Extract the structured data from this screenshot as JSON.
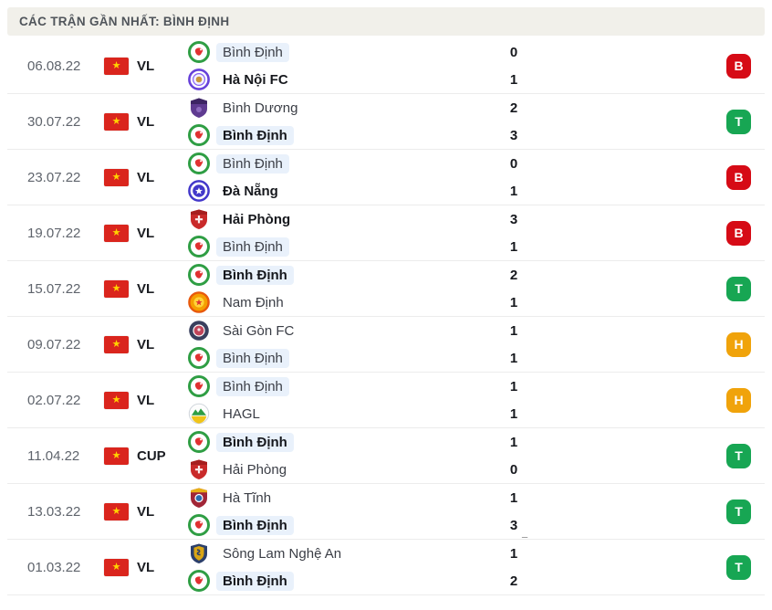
{
  "header": {
    "title": "CÁC TRẬN GẦN NHẤT: BÌNH ĐỊNH"
  },
  "icons": {
    "flag_star": "★"
  },
  "colors": {
    "highlight": "#e9f1fb",
    "flag_red": "#da251d",
    "flag_star": "#ffd400",
    "header_bg": "#f1f0ea"
  },
  "result_colors": {
    "T": "#17a653",
    "H": "#f0a30b",
    "B": "#d60b16"
  },
  "matches": [
    {
      "date": "06.08.22",
      "competition": "VL",
      "result": "B",
      "home": {
        "name": "Bình Định",
        "logo": "binh-dinh",
        "score": "0",
        "bold": false,
        "highlight": true
      },
      "away": {
        "name": "Hà Nội FC",
        "logo": "ha-noi-fc",
        "score": "1",
        "bold": true,
        "highlight": false
      }
    },
    {
      "date": "30.07.22",
      "competition": "VL",
      "result": "T",
      "home": {
        "name": "Bình Dương",
        "logo": "binh-duong",
        "score": "2",
        "bold": false,
        "highlight": false
      },
      "away": {
        "name": "Bình Định",
        "logo": "binh-dinh",
        "score": "3",
        "bold": true,
        "highlight": true
      }
    },
    {
      "date": "23.07.22",
      "competition": "VL",
      "result": "B",
      "home": {
        "name": "Bình Định",
        "logo": "binh-dinh",
        "score": "0",
        "bold": false,
        "highlight": true
      },
      "away": {
        "name": "Đà Nẵng",
        "logo": "da-nang",
        "score": "1",
        "bold": true,
        "highlight": false
      }
    },
    {
      "date": "19.07.22",
      "competition": "VL",
      "result": "B",
      "home": {
        "name": "Hải Phòng",
        "logo": "hai-phong",
        "score": "3",
        "bold": true,
        "highlight": false
      },
      "away": {
        "name": "Bình Định",
        "logo": "binh-dinh",
        "score": "1",
        "bold": false,
        "highlight": true
      }
    },
    {
      "date": "15.07.22",
      "competition": "VL",
      "result": "T",
      "home": {
        "name": "Bình Định",
        "logo": "binh-dinh",
        "score": "2",
        "bold": true,
        "highlight": true
      },
      "away": {
        "name": "Nam Định",
        "logo": "nam-dinh",
        "score": "1",
        "bold": false,
        "highlight": false
      }
    },
    {
      "date": "09.07.22",
      "competition": "VL",
      "result": "H",
      "home": {
        "name": "Sài Gòn FC",
        "logo": "sai-gon-fc",
        "score": "1",
        "bold": false,
        "highlight": false
      },
      "away": {
        "name": "Bình Định",
        "logo": "binh-dinh",
        "score": "1",
        "bold": false,
        "highlight": true
      }
    },
    {
      "date": "02.07.22",
      "competition": "VL",
      "result": "H",
      "home": {
        "name": "Bình Định",
        "logo": "binh-dinh",
        "score": "1",
        "bold": false,
        "highlight": true
      },
      "away": {
        "name": "HAGL",
        "logo": "hagl",
        "score": "1",
        "bold": false,
        "highlight": false
      }
    },
    {
      "date": "11.04.22",
      "competition": "CUP",
      "result": "T",
      "home": {
        "name": "Bình Định",
        "logo": "binh-dinh",
        "score": "1",
        "bold": true,
        "highlight": true
      },
      "away": {
        "name": "Hải Phòng",
        "logo": "hai-phong",
        "score": "0",
        "bold": false,
        "highlight": false
      }
    },
    {
      "date": "13.03.22",
      "competition": "VL",
      "result": "T",
      "home": {
        "name": "Hà Tĩnh",
        "logo": "ha-tinh",
        "score": "1",
        "bold": false,
        "highlight": false
      },
      "away": {
        "name": "Bình Định",
        "logo": "binh-dinh",
        "score": "3",
        "bold": true,
        "highlight": true,
        "score_mark": "_"
      }
    },
    {
      "date": "01.03.22",
      "competition": "VL",
      "result": "T",
      "home": {
        "name": "Sông Lam Nghệ An",
        "logo": "song-lam-nghe-an",
        "score": "1",
        "bold": false,
        "highlight": false
      },
      "away": {
        "name": "Bình Định",
        "logo": "binh-dinh",
        "score": "2",
        "bold": true,
        "highlight": true
      }
    }
  ]
}
